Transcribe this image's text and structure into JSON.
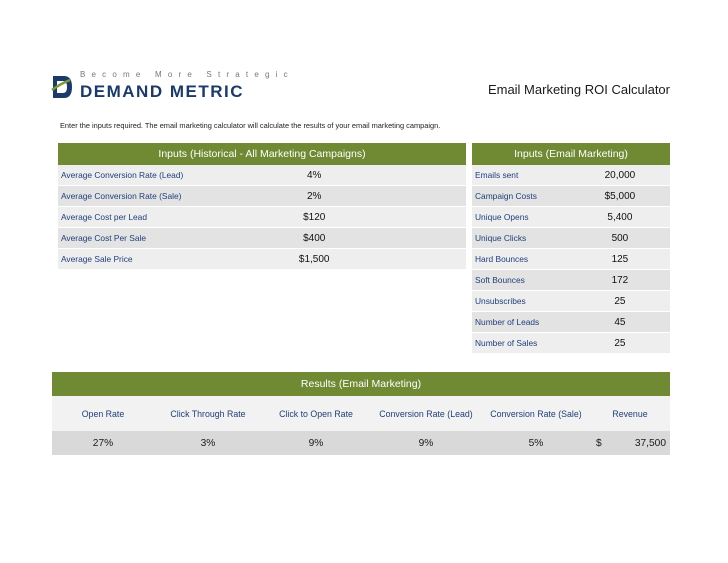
{
  "logo": {
    "tagline": "Become More Strategic",
    "brand": "DEMAND METRIC"
  },
  "calculator_title": "Email Marketing ROI Calculator",
  "intro": "Enter the inputs required. The email marketing calculator will calculate the results of your email marketing campaign.",
  "historical": {
    "header": "Inputs (Historical - All Marketing Campaigns)",
    "rows": [
      {
        "label": "Average Conversion Rate (Lead)",
        "value": "4%"
      },
      {
        "label": "Average Conversion Rate (Sale)",
        "value": "2%"
      },
      {
        "label": "Average Cost per Lead",
        "value": "$120"
      },
      {
        "label": "Average Cost Per Sale",
        "value": "$400"
      },
      {
        "label": "Average Sale Price",
        "value": "$1,500"
      }
    ]
  },
  "email_inputs": {
    "header": "Inputs (Email Marketing)",
    "rows": [
      {
        "label": "Emails sent",
        "value": "20,000"
      },
      {
        "label": "Campaign Costs",
        "value": "$5,000"
      },
      {
        "label": "Unique Opens",
        "value": "5,400"
      },
      {
        "label": "Unique Clicks",
        "value": "500"
      },
      {
        "label": "Hard Bounces",
        "value": "125"
      },
      {
        "label": "Soft Bounces",
        "value": "172"
      },
      {
        "label": "Unsubscribes",
        "value": "25"
      },
      {
        "label": "Number of Leads",
        "value": "45"
      },
      {
        "label": "Number of Sales",
        "value": "25"
      }
    ]
  },
  "results": {
    "header": "Results (Email Marketing)",
    "columns": [
      "Open Rate",
      "Click Through Rate",
      "Click to Open Rate",
      "Conversion Rate (Lead)",
      "Conversion Rate (Sale)",
      "Revenue"
    ],
    "values": [
      "27%",
      "3%",
      "9%",
      "9%",
      "5%",
      "37,500"
    ],
    "currency_symbol": "$"
  },
  "colors": {
    "header_green": "#6f8a33",
    "label_blue": "#1f3f7a",
    "brand_navy": "#1b3a6b"
  }
}
